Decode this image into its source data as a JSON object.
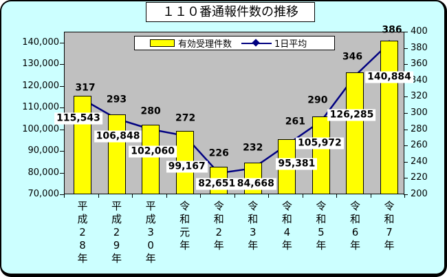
{
  "chart_data": {
    "type": "bar+line",
    "title": "１１０番通報件数の推移",
    "categories": [
      "平成28年",
      "平成29年",
      "平成30年",
      "令和元年",
      "令和2年",
      "令和3年",
      "令和4年",
      "令和5年",
      "令和6年",
      "令和7年"
    ],
    "series": [
      {
        "name": "有効受理件数",
        "type": "bar",
        "axis": "left",
        "color": "#FFFF00",
        "values": [
          115543,
          106848,
          102060,
          99167,
          82651,
          84668,
          95381,
          105972,
          126285,
          140884
        ],
        "data_labels": [
          "115,543",
          "106,848",
          "102,060",
          "99,167",
          "82,651",
          "84,668",
          "95,381",
          "105,972",
          "126,285",
          "140,884"
        ]
      },
      {
        "name": "1日平均",
        "type": "line",
        "axis": "right",
        "color": "#000080",
        "values": [
          317,
          293,
          280,
          272,
          226,
          232,
          261,
          290,
          346,
          386
        ],
        "data_labels": [
          "317",
          "293",
          "280",
          "272",
          "226",
          "232",
          "261",
          "290",
          "346",
          "386"
        ]
      }
    ],
    "left_axis": {
      "min": 70000,
      "max": 145000,
      "tick_values": [
        140000,
        130000,
        120000,
        110000,
        100000,
        90000,
        80000,
        70000
      ],
      "tick_labels": [
        "140,000",
        "130,000",
        "120,000",
        "110,000",
        "100,000",
        "90,000",
        "80,000",
        "70,000"
      ]
    },
    "right_axis": {
      "min": 200,
      "max": 400,
      "tick_values": [
        400,
        380,
        360,
        340,
        320,
        300,
        280,
        260,
        240,
        220,
        200
      ],
      "tick_labels": [
        "400",
        "380",
        "360",
        "340",
        "320",
        "300",
        "280",
        "260",
        "240",
        "220",
        "200"
      ]
    },
    "legend": {
      "position": "top-center",
      "bar_label": "有効受理件数",
      "line_label": "1日平均"
    },
    "grid": "off",
    "colors": {
      "background": "#CCFFFF",
      "plot_background": "#C0C0C0",
      "bar_fill": "#FFFF00",
      "line": "#000080",
      "label_background": "#FFFFFF",
      "text": "#000000",
      "border": "#000000"
    }
  }
}
